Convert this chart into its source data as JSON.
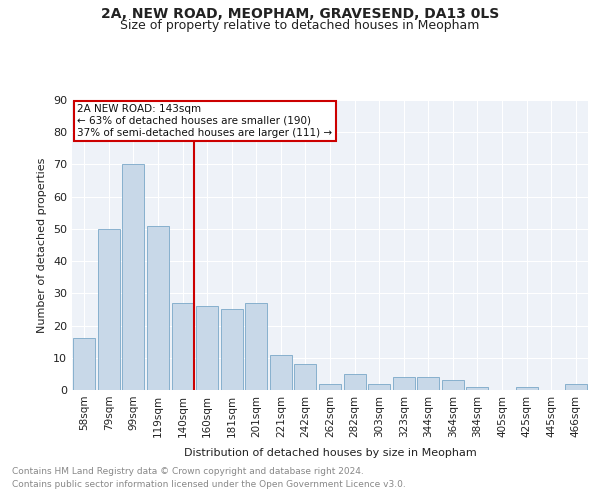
{
  "title": "2A, NEW ROAD, MEOPHAM, GRAVESEND, DA13 0LS",
  "subtitle": "Size of property relative to detached houses in Meopham",
  "xlabel": "Distribution of detached houses by size in Meopham",
  "ylabel": "Number of detached properties",
  "footnote1": "Contains HM Land Registry data © Crown copyright and database right 2024.",
  "footnote2": "Contains public sector information licensed under the Open Government Licence v3.0.",
  "annotation_line1": "2A NEW ROAD: 143sqm",
  "annotation_line2": "← 63% of detached houses are smaller (190)",
  "annotation_line3": "37% of semi-detached houses are larger (111) →",
  "bar_labels": [
    "58sqm",
    "79sqm",
    "99sqm",
    "119sqm",
    "140sqm",
    "160sqm",
    "181sqm",
    "201sqm",
    "221sqm",
    "242sqm",
    "262sqm",
    "282sqm",
    "303sqm",
    "323sqm",
    "344sqm",
    "364sqm",
    "384sqm",
    "405sqm",
    "425sqm",
    "445sqm",
    "466sqm"
  ],
  "bar_values": [
    16,
    50,
    70,
    51,
    27,
    26,
    25,
    27,
    11,
    8,
    2,
    5,
    2,
    4,
    4,
    3,
    1,
    0,
    1,
    0,
    2
  ],
  "bar_color": "#c8d8e8",
  "bar_edgecolor": "#7aa8c8",
  "ref_line_color": "#cc0000",
  "bg_color": "#eef2f8",
  "ylim": [
    0,
    90
  ],
  "yticks": [
    0,
    10,
    20,
    30,
    40,
    50,
    60,
    70,
    80,
    90
  ],
  "annotation_box_color": "#cc0000",
  "grid_color": "#ffffff",
  "title_fontsize": 10,
  "subtitle_fontsize": 9,
  "axis_label_fontsize": 8,
  "tick_fontsize": 7.5,
  "footnote_fontsize": 6.5
}
